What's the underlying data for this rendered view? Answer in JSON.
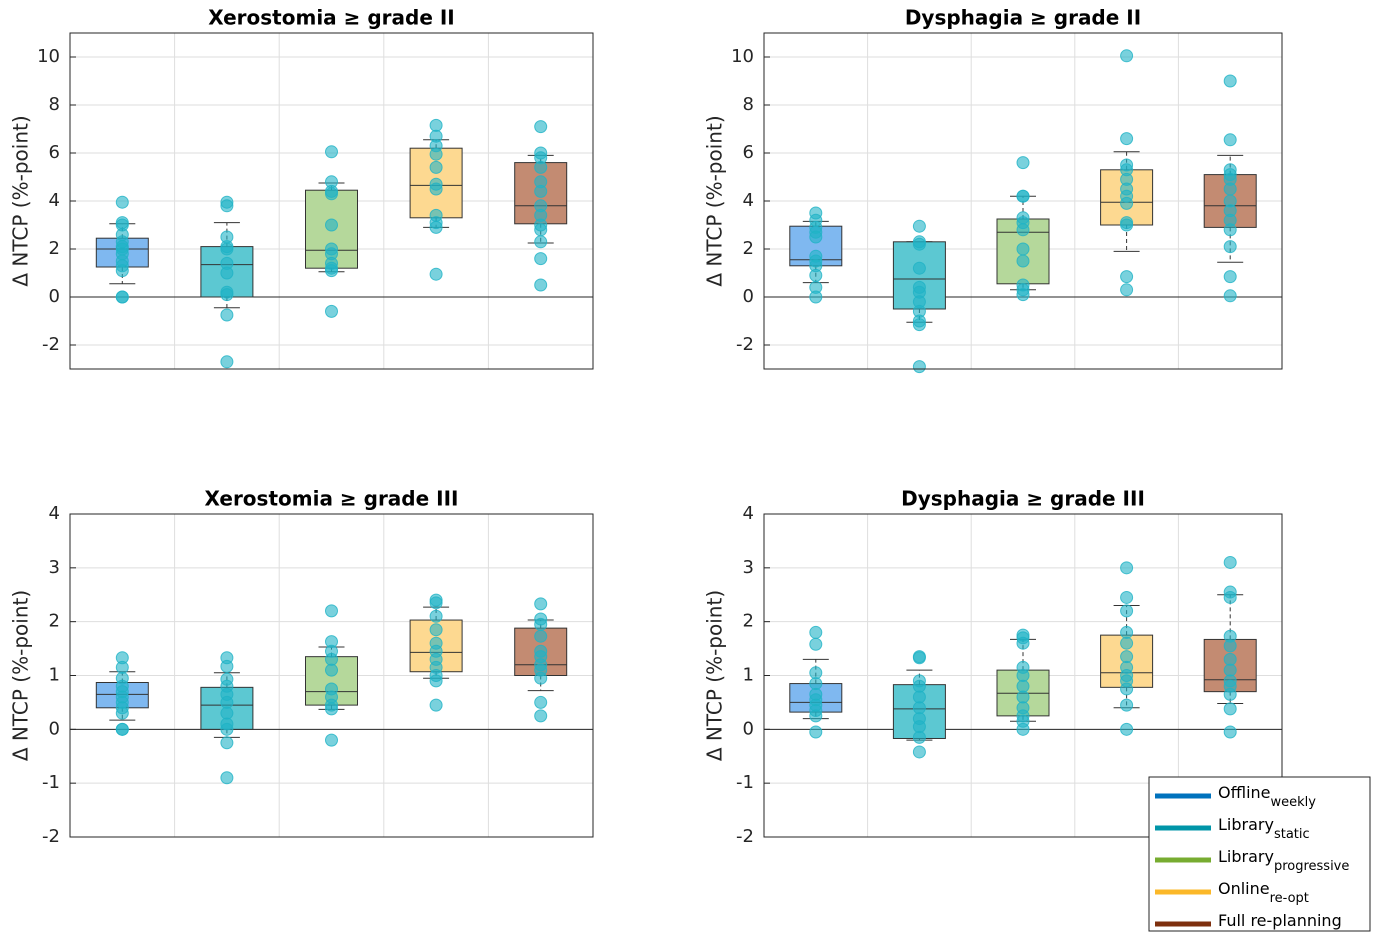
{
  "chart_data": [
    {
      "type": "box",
      "title": "Xerostomia ≥ grade II",
      "ylabel": "Δ NTCP (%-point)",
      "ylim": [
        -3,
        11
      ],
      "yticks": [
        -2,
        0,
        2,
        4,
        6,
        8,
        10
      ],
      "grid": true,
      "boxes": [
        {
          "whisker_low": 0.55,
          "q1": 1.25,
          "median": 2.0,
          "q3": 2.45,
          "whisker_high": 3.05,
          "points": [
            3.95,
            3.1,
            3.0,
            2.6,
            2.3,
            2.1,
            2.0,
            1.8,
            1.5,
            1.3,
            1.1,
            0.0,
            0.0
          ]
        },
        {
          "whisker_low": -0.45,
          "q1": 0.0,
          "median": 1.35,
          "q3": 2.1,
          "whisker_high": 3.1,
          "points": [
            3.95,
            3.8,
            2.5,
            2.1,
            2.0,
            1.4,
            1.0,
            0.2,
            0.1,
            -0.75,
            -2.7
          ]
        },
        {
          "whisker_low": 1.05,
          "q1": 1.2,
          "median": 1.95,
          "q3": 4.45,
          "whisker_high": 4.75,
          "points": [
            6.05,
            4.8,
            4.4,
            4.3,
            3.0,
            2.0,
            1.8,
            1.4,
            1.2,
            1.1,
            -0.6
          ]
        },
        {
          "whisker_low": 2.9,
          "q1": 3.3,
          "median": 4.65,
          "q3": 6.2,
          "whisker_high": 6.55,
          "points": [
            7.15,
            6.7,
            6.3,
            5.95,
            5.4,
            4.7,
            4.5,
            3.4,
            3.1,
            2.9,
            0.95
          ]
        },
        {
          "whisker_low": 2.25,
          "q1": 3.05,
          "median": 3.8,
          "q3": 5.6,
          "whisker_high": 5.9,
          "points": [
            7.1,
            6.0,
            5.8,
            5.4,
            4.8,
            4.4,
            3.8,
            3.4,
            3.0,
            2.8,
            2.3,
            1.6,
            0.5
          ]
        }
      ]
    },
    {
      "type": "box",
      "title": "Dysphagia ≥ grade II",
      "ylabel": "Δ NTCP (%-point)",
      "ylim": [
        -3,
        11
      ],
      "yticks": [
        -2,
        0,
        2,
        4,
        6,
        8,
        10
      ],
      "grid": true,
      "boxes": [
        {
          "whisker_low": 0.6,
          "q1": 1.3,
          "median": 1.55,
          "q3": 2.95,
          "whisker_high": 3.15,
          "points": [
            3.5,
            3.2,
            2.9,
            2.7,
            2.5,
            1.7,
            1.5,
            1.3,
            0.9,
            0.4,
            0.0
          ]
        },
        {
          "whisker_low": -1.05,
          "q1": -0.5,
          "median": 0.75,
          "q3": 2.3,
          "whisker_high": 2.3,
          "points": [
            2.95,
            2.3,
            2.2,
            1.2,
            0.4,
            0.2,
            -0.2,
            -0.6,
            -1.0,
            -1.15,
            -2.9
          ]
        },
        {
          "whisker_low": 0.3,
          "q1": 0.55,
          "median": 2.7,
          "q3": 3.25,
          "whisker_high": 4.2,
          "points": [
            5.6,
            4.2,
            4.2,
            3.3,
            3.1,
            2.8,
            2.0,
            1.5,
            0.5,
            0.3,
            0.1
          ]
        },
        {
          "whisker_low": 1.9,
          "q1": 3.0,
          "median": 3.95,
          "q3": 5.3,
          "whisker_high": 6.05,
          "points": [
            10.05,
            6.6,
            5.5,
            5.3,
            4.9,
            4.5,
            4.2,
            3.9,
            3.1,
            3.0,
            0.85,
            0.3
          ]
        },
        {
          "whisker_low": 1.45,
          "q1": 2.9,
          "median": 3.8,
          "q3": 5.1,
          "whisker_high": 5.9,
          "points": [
            9.0,
            6.55,
            5.3,
            5.1,
            4.9,
            4.5,
            4.0,
            3.6,
            3.2,
            2.8,
            2.1,
            0.85,
            0.05
          ]
        }
      ]
    },
    {
      "type": "box",
      "title": "Xerostomia ≥ grade III",
      "ylabel": "Δ NTCP (%-point)",
      "ylim": [
        -2,
        4
      ],
      "yticks": [
        -2,
        -1,
        0,
        1,
        2,
        3,
        4
      ],
      "grid": true,
      "boxes": [
        {
          "whisker_low": 0.17,
          "q1": 0.4,
          "median": 0.65,
          "q3": 0.87,
          "whisker_high": 1.07,
          "points": [
            1.33,
            1.15,
            0.95,
            0.8,
            0.7,
            0.6,
            0.5,
            0.4,
            0.3,
            0.0,
            0.0
          ]
        },
        {
          "whisker_low": -0.15,
          "q1": 0.0,
          "median": 0.45,
          "q3": 0.78,
          "whisker_high": 1.05,
          "points": [
            1.33,
            1.17,
            0.93,
            0.8,
            0.65,
            0.5,
            0.3,
            0.1,
            0.0,
            -0.25,
            -0.9
          ]
        },
        {
          "whisker_low": 0.37,
          "q1": 0.45,
          "median": 0.7,
          "q3": 1.35,
          "whisker_high": 1.53,
          "points": [
            2.2,
            1.63,
            1.45,
            1.3,
            1.1,
            0.75,
            0.6,
            0.45,
            0.38,
            -0.2
          ]
        },
        {
          "whisker_low": 0.95,
          "q1": 1.07,
          "median": 1.43,
          "q3": 2.03,
          "whisker_high": 2.27,
          "points": [
            2.4,
            2.35,
            2.1,
            1.85,
            1.6,
            1.45,
            1.3,
            1.15,
            1.0,
            0.9,
            0.45
          ]
        },
        {
          "whisker_low": 0.72,
          "q1": 1.0,
          "median": 1.2,
          "q3": 1.88,
          "whisker_high": 2.03,
          "points": [
            2.33,
            2.05,
            1.95,
            1.73,
            1.45,
            1.35,
            1.2,
            1.1,
            0.95,
            0.5,
            0.25
          ]
        }
      ]
    },
    {
      "type": "box",
      "title": "Dysphagia ≥ grade III",
      "ylabel": "Δ NTCP (%-point)",
      "ylim": [
        -2,
        4
      ],
      "yticks": [
        -2,
        -1,
        0,
        1,
        2,
        3,
        4
      ],
      "grid": true,
      "boxes": [
        {
          "whisker_low": 0.2,
          "q1": 0.32,
          "median": 0.5,
          "q3": 0.85,
          "whisker_high": 1.3,
          "points": [
            1.8,
            1.58,
            1.05,
            0.85,
            0.65,
            0.55,
            0.45,
            0.35,
            0.25,
            -0.05
          ]
        },
        {
          "whisker_low": -0.2,
          "q1": -0.17,
          "median": 0.38,
          "q3": 0.83,
          "whisker_high": 1.1,
          "points": [
            1.35,
            1.33,
            0.9,
            0.8,
            0.6,
            0.4,
            0.2,
            0.05,
            -0.15,
            -0.42
          ]
        },
        {
          "whisker_low": 0.15,
          "q1": 0.25,
          "median": 0.67,
          "q3": 1.1,
          "whisker_high": 1.67,
          "points": [
            1.75,
            1.7,
            1.6,
            1.15,
            1.0,
            0.8,
            0.6,
            0.4,
            0.25,
            0.15,
            0.0
          ]
        },
        {
          "whisker_low": 0.4,
          "q1": 0.78,
          "median": 1.05,
          "q3": 1.75,
          "whisker_high": 2.3,
          "points": [
            3.0,
            2.45,
            2.2,
            1.8,
            1.6,
            1.35,
            1.15,
            1.0,
            0.9,
            0.75,
            0.45,
            0.0
          ]
        },
        {
          "whisker_low": 0.48,
          "q1": 0.7,
          "median": 0.92,
          "q3": 1.67,
          "whisker_high": 2.5,
          "points": [
            3.1,
            2.55,
            2.45,
            1.73,
            1.55,
            1.3,
            1.1,
            0.9,
            0.8,
            0.65,
            0.38,
            -0.05
          ]
        }
      ]
    }
  ],
  "marker_color": "#1fb3c6",
  "legend": {
    "position": "lower right",
    "entries": [
      {
        "name": "Offline",
        "sub": "weekly",
        "color": "#0072bd",
        "fill": "#7fb8f0"
      },
      {
        "name": "Library",
        "sub": "static",
        "color": "#0095a8",
        "fill": "#5cc8d2"
      },
      {
        "name": "Library",
        "sub": "progressive",
        "color": "#77ac30",
        "fill": "#b5d89b"
      },
      {
        "name": "Online",
        "sub": "re-opt",
        "color": "#fbb829",
        "fill": "#fdd991"
      },
      {
        "name": "Full re-planning",
        "color": "#7e2f0e",
        "fill": "#c38b72"
      }
    ]
  }
}
